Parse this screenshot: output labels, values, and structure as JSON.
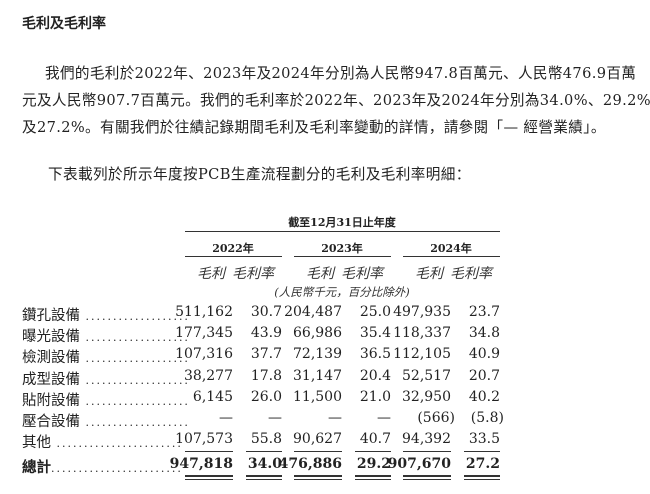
{
  "section_title": "毛利及毛利率",
  "paragraph_lines": [
    "我們的毛利於2022年、2023年及2024年分別為人民幣947.8百萬元、人民幣476.9百萬",
    "元及人民幣907.7百萬元。我們的毛利率於2022年、2023年及2024年分別為34.0%、29.2%",
    "及27.2%。有關我們於往績記錄期間毛利及毛利率變動的詳情，請參閱「— 經營業績」。"
  ],
  "intro": "下表載列於所示年度按PCB生產流程劃分的毛利及毛利率明細：",
  "table": {
    "period_header": "截至12月31日止年度",
    "years": [
      "2022年",
      "2023年",
      "2024年"
    ],
    "subheaders": [
      "毛利",
      "毛利率",
      "毛利",
      "毛利率",
      "毛利",
      "毛利率"
    ],
    "unit_note": "(人民幣千元，百分比除外)",
    "rows": [
      {
        "label": "鑽孔設備",
        "values": [
          "511,162",
          "30.7",
          "204,487",
          "25.0",
          "497,935",
          "23.7"
        ]
      },
      {
        "label": "曝光設備",
        "values": [
          "177,345",
          "43.9",
          "66,986",
          "35.4",
          "118,337",
          "34.8"
        ]
      },
      {
        "label": "檢測設備",
        "values": [
          "107,316",
          "37.7",
          "72,139",
          "36.5",
          "112,105",
          "40.9"
        ]
      },
      {
        "label": "成型設備",
        "values": [
          "38,277",
          "17.8",
          "31,147",
          "20.4",
          "52,517",
          "20.7"
        ]
      },
      {
        "label": "貼附設備",
        "values": [
          "6,145",
          "26.0",
          "11,500",
          "21.0",
          "32,950",
          "40.2"
        ]
      },
      {
        "label": "壓合設備",
        "values": [
          "—",
          "—",
          "—",
          "—",
          "(566)",
          "(5.8)"
        ]
      },
      {
        "label": "其他",
        "values": [
          "107,573",
          "55.8",
          "90,627",
          "40.7",
          "94,392",
          "33.5"
        ]
      }
    ],
    "total": {
      "label": "總計",
      "values": [
        "947,818",
        "34.0",
        "476,886",
        "29.2",
        "907,670",
        "27.2"
      ]
    }
  }
}
